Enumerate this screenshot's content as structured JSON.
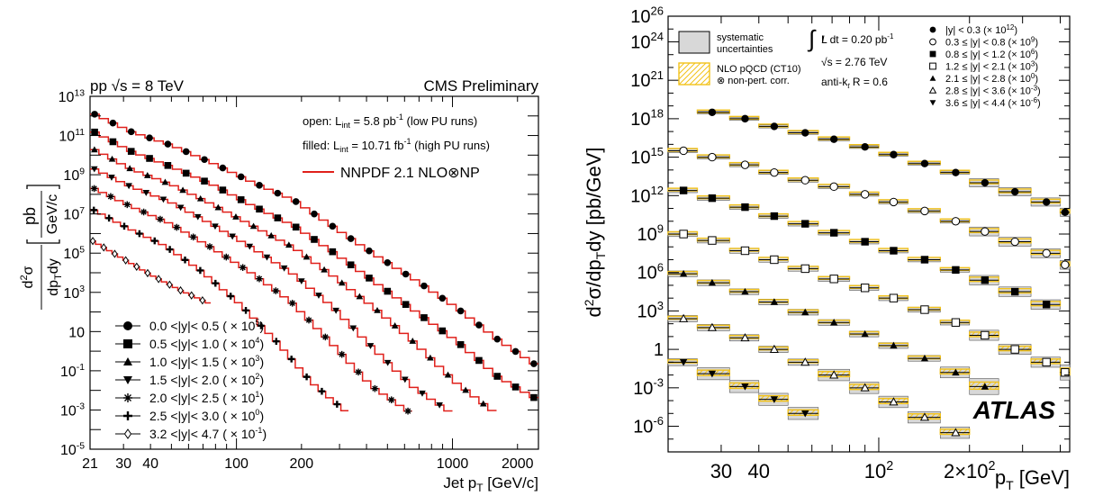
{
  "chart_data": [
    {
      "type": "line",
      "x_scale": "log",
      "y_scale": "log",
      "xlim": [
        21,
        2500
      ],
      "ylim": [
        1e-05,
        10000000000000.0
      ],
      "title_left": "pp √s = 8 TeV",
      "title_right": "CMS Preliminary",
      "xlabel": "Jet p",
      "xlabel_sub": "T",
      "xlabel_unit": " [GeV/c]",
      "ylabel": "d²σ / dp_T dy [pb / GeV/c]",
      "x_ticks": [
        {
          "v": 21,
          "label": "21"
        },
        {
          "v": 30,
          "label": "30"
        },
        {
          "v": 40,
          "label": "40"
        },
        {
          "v": 100,
          "label": "100"
        },
        {
          "v": 200,
          "label": "200"
        },
        {
          "v": 1000,
          "label": "1000"
        },
        {
          "v": 2000,
          "label": "2000"
        }
      ],
      "y_ticks": [
        {
          "e": 13,
          "label": "10",
          "sup": "13"
        },
        {
          "e": 11,
          "label": "10",
          "sup": "11"
        },
        {
          "e": 9,
          "label": "10",
          "sup": "9"
        },
        {
          "e": 7,
          "label": "10",
          "sup": "7"
        },
        {
          "e": 5,
          "label": "10",
          "sup": "5"
        },
        {
          "e": 3,
          "label": "10",
          "sup": "3"
        },
        {
          "e": 1,
          "label": "10",
          "sup": ""
        },
        {
          "e": -1,
          "label": "10",
          "sup": "-1"
        },
        {
          "e": -3,
          "label": "10",
          "sup": "-3"
        },
        {
          "e": -5,
          "label": "10",
          "sup": "-5"
        }
      ],
      "annotations": [
        {
          "text": "open: L",
          "sub": "int",
          "rest": " = 5.8 pb",
          "sup": "-1",
          "tail": " (low PU runs)"
        },
        {
          "text": "filled: L",
          "sub": "int",
          "rest": " = 10.71 fb",
          "sup": "-1",
          "tail": " (high PU runs)"
        }
      ],
      "theory_label": "NNPDF 2.1 NLO⊗NP",
      "theory_color": "#e0201b",
      "legend": [
        {
          "label": "0.0 <|y|< 0.5 ( × 10",
          "sup": "5",
          "close": ")",
          "marker": "circle-filled"
        },
        {
          "label": "0.5 <|y|< 1.0 ( × 10",
          "sup": "4",
          "close": ")",
          "marker": "square-filled"
        },
        {
          "label": "1.0 <|y|< 1.5 ( × 10",
          "sup": "3",
          "close": ")",
          "marker": "triangle-up"
        },
        {
          "label": "1.5 <|y|< 2.0 ( × 10",
          "sup": "2",
          "close": ")",
          "marker": "triangle-down"
        },
        {
          "label": "2.0 <|y|< 2.5 ( × 10",
          "sup": "1",
          "close": ")",
          "marker": "star"
        },
        {
          "label": "2.5 <|y|< 3.0 ( × 10",
          "sup": "0",
          "close": ")",
          "marker": "cross"
        },
        {
          "label": "3.2 <|y|< 4.7 ( × 10",
          "sup": "-1",
          "close": ")",
          "marker": "diamond-open"
        }
      ],
      "series": [
        {
          "name": "0.0 <|y|< 0.5",
          "marker": "circle-filled",
          "x_min": 21,
          "x_max": 2500,
          "log_y": [
            12.2,
            11.2,
            10.5,
            9.6,
            8.6,
            7.7,
            6.3,
            4.9,
            3.6,
            2.2,
            0.6,
            -0.8
          ]
        },
        {
          "name": "0.5 <|y|< 1.0",
          "marker": "square-filled",
          "x_min": 21,
          "x_max": 2500,
          "log_y": [
            11.3,
            10.2,
            9.4,
            8.5,
            7.4,
            6.4,
            5.0,
            3.5,
            2.0,
            0.5,
            -1.3,
            -2.5
          ]
        },
        {
          "name": "1.0 <|y|< 1.5",
          "marker": "triangle-up",
          "x_min": 21,
          "x_max": 1600,
          "log_y": [
            10.4,
            9.3,
            8.5,
            7.5,
            6.4,
            5.3,
            3.8,
            2.2,
            0.4,
            -1.6,
            -3.2
          ]
        },
        {
          "name": "1.5 <|y|< 2.0",
          "marker": "triangle-down",
          "x_min": 21,
          "x_max": 1000,
          "log_y": [
            9.4,
            8.4,
            7.6,
            6.5,
            5.3,
            4.0,
            2.3,
            0.2,
            -1.8,
            -3.2
          ]
        },
        {
          "name": "2.0 <|y|< 2.5",
          "marker": "star",
          "x_min": 21,
          "x_max": 650,
          "log_y": [
            8.4,
            7.4,
            6.5,
            5.3,
            4.0,
            2.5,
            0.4,
            -1.8,
            -3.2
          ]
        },
        {
          "name": "2.5 <|y|< 3.0",
          "marker": "cross",
          "x_min": 21,
          "x_max": 330,
          "log_y": [
            7.3,
            6.3,
            5.4,
            4.1,
            2.5,
            0.6,
            -1.6,
            -3.2
          ]
        },
        {
          "name": "3.2 <|y|< 4.7",
          "marker": "diamond-open",
          "x_min": 21,
          "x_max": 76,
          "log_y": [
            5.7,
            4.8,
            3.9,
            3.1,
            2.4
          ]
        }
      ]
    },
    {
      "type": "scatter",
      "x_scale": "log",
      "y_scale": "log",
      "xlim": [
        20,
        430
      ],
      "ylim": [
        1e-08,
        1e+26
      ],
      "xlabel": "p",
      "xlabel_sub": "T",
      "xlabel_unit": " [GeV]",
      "ylabel": "d²σ/dp_T dy [pb/GeV]",
      "brand": "ATLAS",
      "x_ticks": [
        {
          "v": 30,
          "label": "30",
          "sup": ""
        },
        {
          "v": 40,
          "label": "40",
          "sup": ""
        },
        {
          "v": 100,
          "label": "10",
          "sup": "2"
        },
        {
          "v": 200,
          "label": "2×10",
          "sup": "2"
        }
      ],
      "y_ticks": [
        {
          "e": 26,
          "label": "10",
          "sup": "26"
        },
        {
          "e": 24,
          "label": "10",
          "sup": "24"
        },
        {
          "e": 21,
          "label": "10",
          "sup": "21"
        },
        {
          "e": 18,
          "label": "10",
          "sup": "18"
        },
        {
          "e": 15,
          "label": "10",
          "sup": "15"
        },
        {
          "e": 12,
          "label": "10",
          "sup": "12"
        },
        {
          "e": 9,
          "label": "10",
          "sup": "9"
        },
        {
          "e": 6,
          "label": "10",
          "sup": "6"
        },
        {
          "e": 3,
          "label": "10",
          "sup": "3"
        },
        {
          "e": 0,
          "label": "1",
          "sup": ""
        },
        {
          "e": -3,
          "label": "10",
          "sup": "-3"
        },
        {
          "e": -6,
          "label": "10",
          "sup": "-6"
        }
      ],
      "info": {
        "integral": "∫",
        "lumi": "L dt = 0.20 pb",
        "lumi_sup": "-1",
        "energy": "√s = 2.76 TeV",
        "algo": "anti-k",
        "algo_sub": "t",
        "algo_rest": " R = 0.6"
      },
      "box_legend": [
        {
          "line1": "systematic",
          "line2": "uncertainties",
          "style": "gray"
        },
        {
          "line1": "NLO pQCD (CT10)",
          "line2": "⊗ non-pert. corr.",
          "style": "yellow-hatch"
        }
      ],
      "legend": [
        {
          "label": "|y| < 0.3 (× 10",
          "sup": "12",
          "close": ")",
          "marker": "circle-filled"
        },
        {
          "label": "0.3 ≤ |y| < 0.8 (× 10",
          "sup": "9",
          "close": ")",
          "marker": "circle-open"
        },
        {
          "label": "0.8 ≤ |y| < 1.2 (× 10",
          "sup": "6",
          "close": ")",
          "marker": "square-filled"
        },
        {
          "label": "1.2 ≤ |y| < 2.1 (× 10",
          "sup": "3",
          "close": ")",
          "marker": "square-open"
        },
        {
          "label": "2.1 ≤ |y| < 2.8 (× 10",
          "sup": "0",
          "close": ")",
          "marker": "triangle-up"
        },
        {
          "label": "2.8 ≤ |y| < 3.6 (× 10",
          "sup": "-3",
          "close": ")",
          "marker": "triangle-up-open"
        },
        {
          "label": "3.6 ≤ |y| < 4.4 (× 10",
          "sup": "-6",
          "close": ")",
          "marker": "triangle-down"
        }
      ],
      "bin_edges": [
        20,
        25,
        32,
        40,
        50,
        63,
        80,
        100,
        125,
        160,
        200,
        250,
        320,
        400,
        430
      ],
      "series": [
        {
          "name": "|y| < 0.3",
          "marker": "circle-filled",
          "points": [
            [
              28,
              18.5
            ],
            [
              36,
              18.0
            ],
            [
              45,
              17.4
            ],
            [
              57,
              16.9
            ],
            [
              71,
              16.4
            ],
            [
              90,
              15.8
            ],
            [
              112,
              15.2
            ],
            [
              142,
              14.5
            ],
            [
              180,
              13.8
            ],
            [
              225,
              13.0
            ],
            [
              283,
              12.3
            ],
            [
              360,
              11.5
            ],
            [
              415,
              10.7
            ]
          ]
        },
        {
          "name": "0.3 ≤ |y| < 0.8",
          "marker": "circle-open",
          "points": [
            [
              22.5,
              15.5
            ],
            [
              28,
              15.0
            ],
            [
              36,
              14.4
            ],
            [
              45,
              13.8
            ],
            [
              57,
              13.2
            ],
            [
              71,
              12.7
            ],
            [
              90,
              12.1
            ],
            [
              112,
              11.5
            ],
            [
              142,
              10.8
            ],
            [
              180,
              10.0
            ],
            [
              225,
              9.2
            ],
            [
              283,
              8.4
            ],
            [
              360,
              7.5
            ],
            [
              415,
              6.6
            ]
          ]
        },
        {
          "name": "0.8 ≤ |y| < 1.2",
          "marker": "square-filled",
          "points": [
            [
              22.5,
              12.4
            ],
            [
              28,
              11.8
            ],
            [
              36,
              11.1
            ],
            [
              45,
              10.4
            ],
            [
              57,
              9.8
            ],
            [
              71,
              9.1
            ],
            [
              90,
              8.4
            ],
            [
              112,
              7.7
            ],
            [
              142,
              7.0
            ],
            [
              180,
              6.2
            ],
            [
              225,
              5.4
            ],
            [
              283,
              4.5
            ],
            [
              360,
              3.5
            ]
          ]
        },
        {
          "name": "1.2 ≤ |y| < 2.1",
          "marker": "square-open",
          "points": [
            [
              22.5,
              9.0
            ],
            [
              28,
              8.5
            ],
            [
              36,
              7.7
            ],
            [
              45,
              7.0
            ],
            [
              57,
              6.3
            ],
            [
              71,
              5.5
            ],
            [
              90,
              4.8
            ],
            [
              112,
              4.0
            ],
            [
              142,
              3.1
            ],
            [
              180,
              2.1
            ],
            [
              225,
              1.1
            ],
            [
              283,
              0.0
            ],
            [
              360,
              -1.0
            ],
            [
              415,
              -1.8
            ]
          ]
        },
        {
          "name": "2.1 ≤ |y| < 2.8",
          "marker": "triangle-up",
          "points": [
            [
              22.5,
              5.9
            ],
            [
              28,
              5.2
            ],
            [
              36,
              4.5
            ],
            [
              45,
              3.7
            ],
            [
              57,
              2.9
            ],
            [
              71,
              2.1
            ],
            [
              90,
              1.2
            ],
            [
              112,
              0.3
            ],
            [
              142,
              -0.7
            ],
            [
              180,
              -1.8
            ],
            [
              225,
              -2.9
            ]
          ]
        },
        {
          "name": "2.8 ≤ |y| < 3.6",
          "marker": "triangle-up-open",
          "points": [
            [
              22.5,
              2.4
            ],
            [
              28,
              1.7
            ],
            [
              36,
              0.9
            ],
            [
              45,
              0.0
            ],
            [
              57,
              -1.0
            ],
            [
              71,
              -2.0
            ],
            [
              90,
              -3.0
            ],
            [
              112,
              -4.1
            ],
            [
              142,
              -5.3
            ],
            [
              180,
              -6.5
            ]
          ]
        },
        {
          "name": "3.6 ≤ |y| < 4.4",
          "marker": "triangle-down",
          "points": [
            [
              22.5,
              -1.0
            ],
            [
              28,
              -1.9
            ],
            [
              36,
              -2.9
            ],
            [
              45,
              -3.9
            ],
            [
              57,
              -5.0
            ]
          ]
        }
      ]
    }
  ]
}
